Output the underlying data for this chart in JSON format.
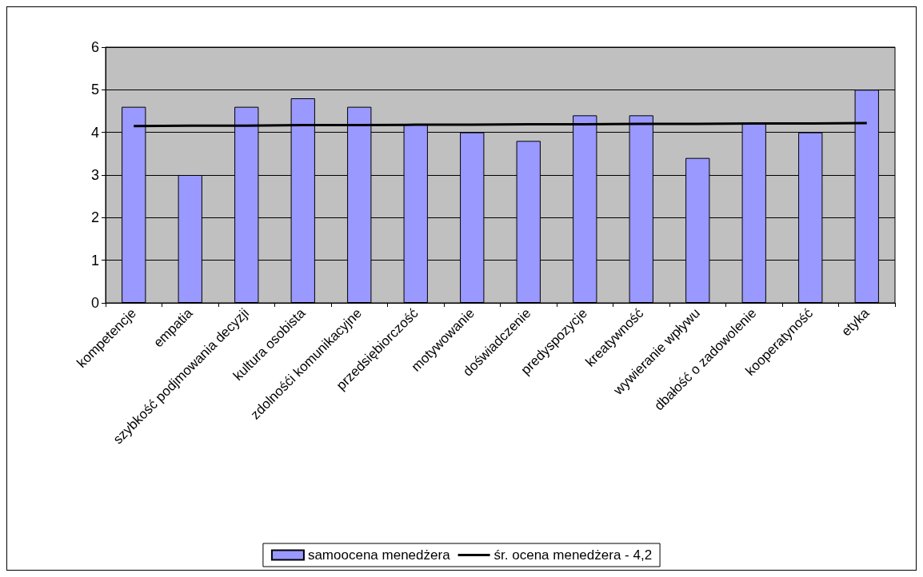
{
  "chart_data": {
    "type": "bar",
    "categories": [
      "kompetencje",
      "empatia",
      "szybkość podjmowania decyzji",
      "kultura osobista",
      "zdolnośći komunikacyjne",
      "przedsiębiorczość",
      "motywowanie",
      "doświadczenie",
      "predyspozycje",
      "kreatywność",
      "wywieranie wpływu",
      "dbałość o zadowolenie",
      "kooperatyność",
      "etyka"
    ],
    "series": [
      {
        "name": "samoocena menedżera",
        "color": "#9999ff",
        "values": [
          4.6,
          3,
          4.6,
          4.8,
          4.6,
          4.2,
          4,
          3.8,
          4.4,
          4.4,
          3.4,
          4.2,
          4,
          5
        ]
      },
      {
        "name": "śr. ocena menedżera - 4,2",
        "type": "line",
        "color": "#000000",
        "values": [
          4.15,
          4.16,
          4.16,
          4.17,
          4.17,
          4.18,
          4.18,
          4.19,
          4.19,
          4.2,
          4.2,
          4.21,
          4.21,
          4.22
        ]
      }
    ],
    "ylim": [
      0,
      6
    ],
    "yticks": [
      0,
      1,
      2,
      3,
      4,
      5,
      6
    ],
    "grid": "y",
    "legend": "bottom",
    "marker": "none"
  }
}
